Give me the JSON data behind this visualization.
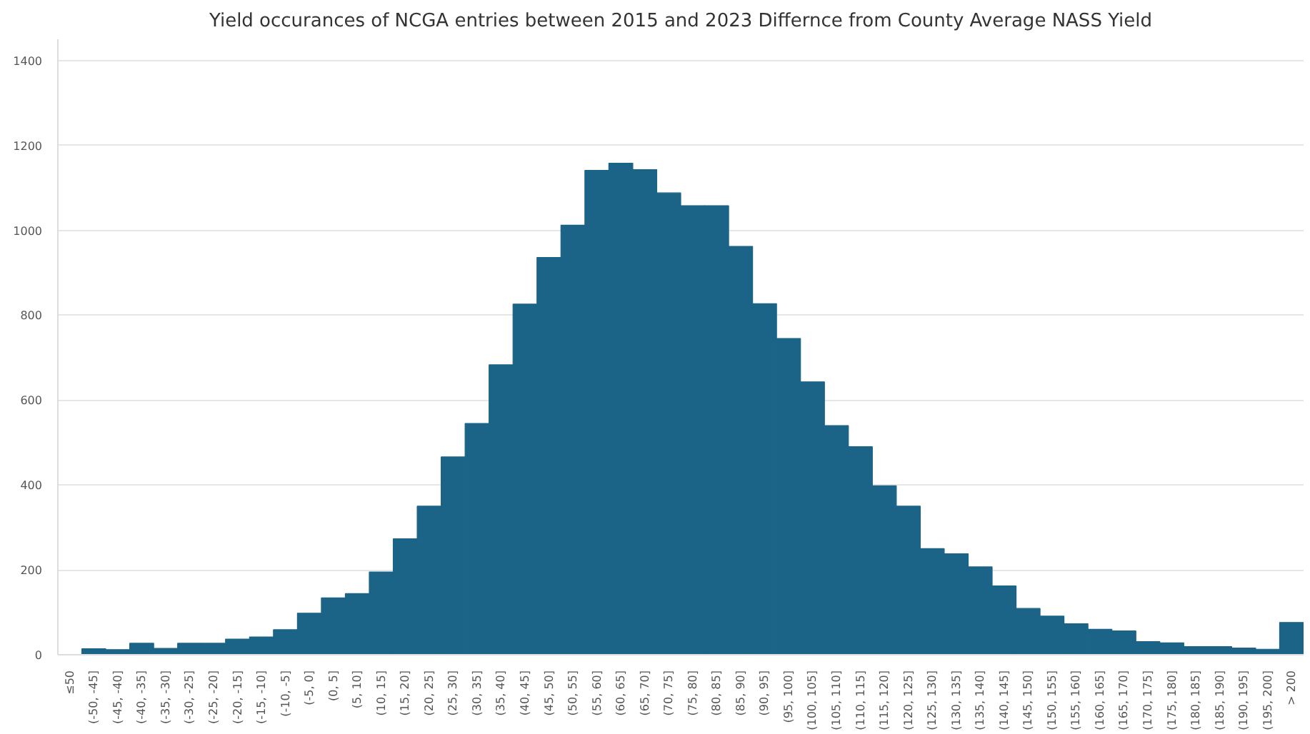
{
  "chart_data": {
    "type": "bar",
    "title": "Yield occurances of NCGA entries between 2015 and 2023 Differnce from County Average NASS Yield",
    "categories": [
      "≤50",
      "(-50, -45]",
      "(-45, -40]",
      "(-40, -35]",
      "(-35, -30]",
      "(-30, -25]",
      "(-25, -20]",
      "(-20, -15]",
      "(-15, -10]",
      "(-10, -5]",
      "(-5, 0]",
      "(0, 5]",
      "(5, 10]",
      "(10, 15]",
      "(15, 20]",
      "(20, 25]",
      "(25, 30]",
      "(30, 35]",
      "(35, 40]",
      "(40, 45]",
      "(45, 50]",
      "(50, 55]",
      "(55, 60]",
      "(60, 65]",
      "(65, 70]",
      "(70, 75]",
      "(75, 80]",
      "(80, 85]",
      "(85, 90]",
      "(90, 95]",
      "(95, 100]",
      "(100, 105]",
      "(105, 110]",
      "(110, 115]",
      "(115, 120]",
      "(120, 125]",
      "(125, 130]",
      "(130, 135]",
      "(135, 140]",
      "(140, 145]",
      "(145, 150]",
      "(150, 155]",
      "(155, 160]",
      "(160, 165]",
      "(165, 170]",
      "(170, 175]",
      "(175, 180]",
      "(180, 185]",
      "(185, 190]",
      "(190, 195]",
      "(195, 200]",
      "> 200"
    ],
    "values": [
      0,
      14,
      12,
      27,
      15,
      27,
      27,
      37,
      42,
      59,
      98,
      134,
      144,
      195,
      273,
      350,
      466,
      545,
      683,
      826,
      936,
      1012,
      1141,
      1158,
      1143,
      1088,
      1058,
      1058,
      962,
      827,
      745,
      643,
      540,
      490,
      398,
      350,
      250,
      238,
      207,
      162,
      109,
      91,
      73,
      60,
      56,
      31,
      28,
      19,
      19,
      16,
      13,
      76
    ],
    "color": "#1b6487",
    "ylim": [
      0,
      1450
    ],
    "yticks": [
      0,
      200,
      400,
      600,
      800,
      1000,
      1200,
      1400
    ],
    "grid": "y"
  }
}
